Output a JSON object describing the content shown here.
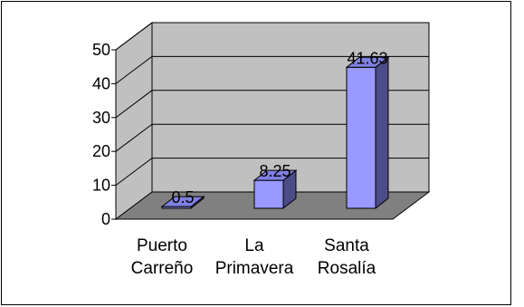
{
  "chart_data": {
    "type": "bar",
    "style": "3d-column",
    "title": "",
    "xlabel": "",
    "ylabel": "",
    "categories": [
      [
        "Puerto",
        "Carreño"
      ],
      [
        "La",
        "Primavera"
      ],
      [
        "Santa",
        "Rosalía"
      ]
    ],
    "values": [
      0.5,
      8.25,
      41.63
    ],
    "value_labels": [
      "0.5",
      "8.25",
      "41.63"
    ],
    "ylim": [
      0,
      50
    ],
    "yticks": [
      0,
      10,
      20,
      30,
      40,
      50
    ],
    "grid": true,
    "legend": "none",
    "colors": {
      "bar_front": "#9999ff",
      "bar_top": "#8080e0",
      "bar_side": "#4c4c88",
      "back_wall": "#c0c0c0",
      "side_wall": "#c0c0c0",
      "floor": "#808080",
      "gridline": "#000000",
      "axis": "#000000"
    }
  }
}
